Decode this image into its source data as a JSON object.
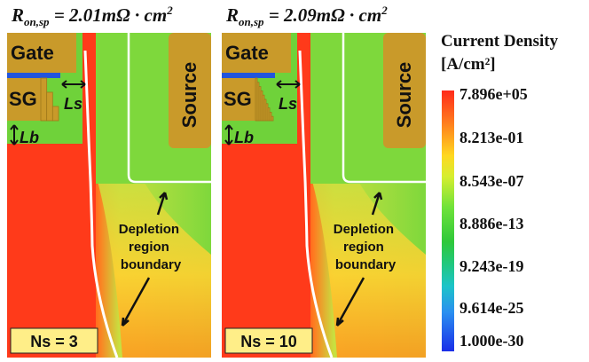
{
  "headers": {
    "left": {
      "main": "R",
      "sub": "on,sp",
      "eq": " = 2.01mΩ · cm",
      "sup": "2"
    },
    "right": {
      "main": "R",
      "sub": "on,sp",
      "eq": " = 2.09mΩ · cm",
      "sup": "2"
    }
  },
  "panels": [
    {
      "gate": "Gate",
      "sg": "SG",
      "source": "Source",
      "ls": "Ls",
      "lb": "Lb",
      "depletion": [
        "Depletion",
        "region",
        "boundary"
      ],
      "ns": "Ns = 3",
      "steps": 3
    },
    {
      "gate": "Gate",
      "sg": "SG",
      "source": "Source",
      "ls": "Ls",
      "lb": "Lb",
      "depletion": [
        "Depletion",
        "region",
        "boundary"
      ],
      "ns": "Ns = 10",
      "steps": 10
    }
  ],
  "legend": {
    "title": "Current Density",
    "unit": "[A/cm²]",
    "ticks": [
      "7.896e+05",
      "8.213e-01",
      "8.543e-07",
      "8.886e-13",
      "9.243e-19",
      "9.614e-25",
      "1.000e-30"
    ]
  },
  "colors": {
    "high": "#ff3a1a",
    "mid": "#ffb020",
    "low": "#7ee03c",
    "oxide": "#c99a2a",
    "sgbar": "#2255dd",
    "bound": "#ffffff"
  }
}
